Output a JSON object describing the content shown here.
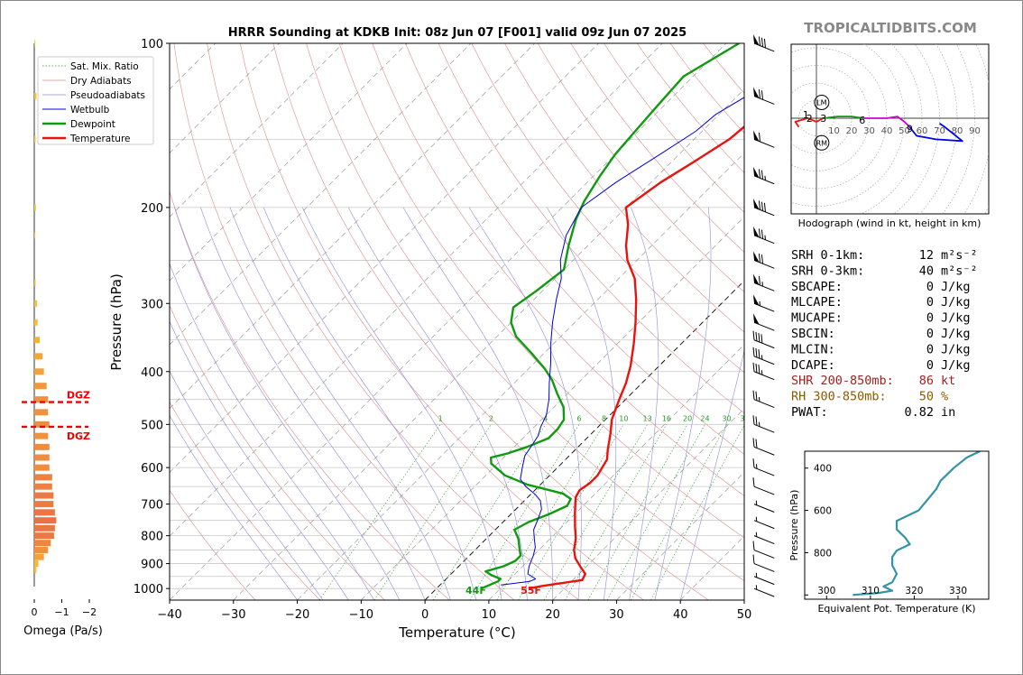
{
  "title": "HRRR Sounding at KDKB Init: 08z Jun 07 [F001] valid 09z Jun 07 2025",
  "brand": "TROPICALTIDBITS.COM",
  "chart_data": [
    {
      "type": "line",
      "name": "skew-t",
      "xlabel": "Temperature (°C)",
      "ylabel": "Pressure (hPa)",
      "xlim": [
        -40,
        50
      ],
      "ylim": [
        1050,
        100
      ],
      "y_scale": "log",
      "x_ticks": [
        "−40",
        "−30",
        "−20",
        "−10",
        "0",
        "10",
        "20",
        "30",
        "40",
        "50"
      ],
      "y_ticks": [
        "100",
        "200",
        "300",
        "400",
        "500",
        "600",
        "700",
        "800",
        "900",
        "1000"
      ],
      "legend": [
        "Sat. Mix. Ratio",
        "Dry Adiabats",
        "Pseudoadiabats",
        "Wetbulb",
        "Dewpoint",
        "Temperature"
      ],
      "legend_position": "upper-left",
      "mixing_ratio_labels": [
        "1",
        "2",
        "4",
        "6",
        "8",
        "10",
        "13",
        "16",
        "20",
        "24",
        "30",
        "36"
      ],
      "surface_labels": {
        "dewpoint": "44F",
        "temperature": "55F"
      },
      "series": [
        {
          "name": "Temperature",
          "color": "#e8130d",
          "points": [
            [
              14.5,
              1000
            ],
            [
              16,
              990
            ],
            [
              21.5,
              965
            ],
            [
              21,
              940
            ],
            [
              19,
              910
            ],
            [
              17,
              880
            ],
            [
              15.5,
              850
            ],
            [
              14,
              810
            ],
            [
              12,
              770
            ],
            [
              10,
              730
            ],
            [
              8.5,
              700
            ],
            [
              7.5,
              680
            ],
            [
              7,
              660
            ],
            [
              7.5,
              640
            ],
            [
              7.5,
              620
            ],
            [
              7,
              600
            ],
            [
              6.5,
              580
            ],
            [
              5,
              555
            ],
            [
              3,
              520
            ],
            [
              1,
              490
            ],
            [
              -1,
              450
            ],
            [
              -2.5,
              420
            ],
            [
              -4.5,
              390
            ],
            [
              -7.5,
              355
            ],
            [
              -10.5,
              325
            ],
            [
              -14,
              295
            ],
            [
              -17.5,
              270
            ],
            [
              -21.5,
              250
            ],
            [
              -24,
              235
            ],
            [
              -27,
              215
            ],
            [
              -30,
              200
            ],
            [
              -28.5,
              180
            ],
            [
              -26.5,
              165
            ],
            [
              -24.5,
              150
            ],
            [
              -24,
              140
            ],
            [
              -22.5,
              125
            ],
            [
              -17,
              110
            ],
            [
              -12,
              100
            ]
          ]
        },
        {
          "name": "Dewpoint",
          "color": "#0f9a0f",
          "points": [
            [
              7,
              1000
            ],
            [
              8.5,
              970
            ],
            [
              8.5,
              960
            ],
            [
              6.5,
              945
            ],
            [
              5,
              930
            ],
            [
              7,
              910
            ],
            [
              8,
              890
            ],
            [
              8,
              870
            ],
            [
              6.5,
              840
            ],
            [
              5,
              810
            ],
            [
              3,
              780
            ],
            [
              4,
              755
            ],
            [
              6,
              730
            ],
            [
              7.5,
              705
            ],
            [
              7,
              685
            ],
            [
              5,
              670
            ],
            [
              -2,
              645
            ],
            [
              -7,
              620
            ],
            [
              -11,
              590
            ],
            [
              -12,
              575
            ],
            [
              -10,
              565
            ],
            [
              -8,
              550
            ],
            [
              -6,
              530
            ],
            [
              -6,
              510
            ],
            [
              -6.5,
              490
            ],
            [
              -8.5,
              465
            ],
            [
              -11.5,
              440
            ],
            [
              -14.5,
              415
            ],
            [
              -17.5,
              395
            ],
            [
              -22,
              370
            ],
            [
              -27,
              345
            ],
            [
              -30,
              325
            ],
            [
              -32,
              305
            ],
            [
              -31,
              285
            ],
            [
              -30,
              260
            ],
            [
              -33,
              235
            ],
            [
              -36,
              210
            ],
            [
              -37.5,
              195
            ],
            [
              -39,
              175
            ],
            [
              -40,
              160
            ],
            [
              -40.5,
              145
            ],
            [
              -41,
              130
            ],
            [
              -41.5,
              115
            ],
            [
              -38,
              100
            ]
          ]
        },
        {
          "name": "Wetbulb",
          "color": "#0000dd",
          "points": [
            [
              9.5,
              985
            ],
            [
              13.5,
              970
            ],
            [
              14,
              960
            ],
            [
              12,
              940
            ],
            [
              11,
              910
            ],
            [
              10,
              870
            ],
            [
              9,
              840
            ],
            [
              7.5,
              810
            ],
            [
              6,
              780
            ],
            [
              5,
              745
            ],
            [
              4,
              715
            ],
            [
              2.5,
              690
            ],
            [
              0.5,
              670
            ],
            [
              -2,
              650
            ],
            [
              -4,
              630
            ],
            [
              -5.5,
              600
            ],
            [
              -7,
              570
            ],
            [
              -7.5,
              545
            ],
            [
              -8,
              525
            ],
            [
              -9,
              505
            ],
            [
              -10,
              480
            ],
            [
              -12,
              450
            ],
            [
              -14.5,
              420
            ],
            [
              -17.5,
              385
            ],
            [
              -20.5,
              355
            ],
            [
              -23.5,
              325
            ],
            [
              -26.5,
              295
            ],
            [
              -29,
              270
            ],
            [
              -32,
              250
            ],
            [
              -35,
              225
            ],
            [
              -37,
              200
            ],
            [
              -35.5,
              180
            ],
            [
              -33,
              160
            ],
            [
              -31,
              145
            ],
            [
              -30.5,
              135
            ],
            [
              -27.5,
              120
            ],
            [
              -22,
              110
            ],
            [
              -14,
              100
            ]
          ]
        }
      ]
    },
    {
      "type": "bar",
      "name": "omega",
      "xlabel": "Omega (Pa/s)",
      "x_ticks": [
        "0",
        "−1",
        "−2"
      ],
      "annotation": "DGZ",
      "dgz_bounds_hpa": [
        455,
        505
      ],
      "bars": [
        {
          "p": 100,
          "omega": -0.02
        },
        {
          "p": 125,
          "omega": -0.08
        },
        {
          "p": 150,
          "omega": -0.05
        },
        {
          "p": 200,
          "omega": -0.06
        },
        {
          "p": 225,
          "omega": -0.02
        },
        {
          "p": 275,
          "omega": -0.05
        },
        {
          "p": 300,
          "omega": -0.1
        },
        {
          "p": 325,
          "omega": -0.12
        },
        {
          "p": 350,
          "omega": -0.2
        },
        {
          "p": 375,
          "omega": -0.3
        },
        {
          "p": 400,
          "omega": -0.35
        },
        {
          "p": 425,
          "omega": -0.45
        },
        {
          "p": 450,
          "omega": -0.5
        },
        {
          "p": 475,
          "omega": -0.5
        },
        {
          "p": 500,
          "omega": -0.55
        },
        {
          "p": 525,
          "omega": -0.5
        },
        {
          "p": 550,
          "omega": -0.55
        },
        {
          "p": 575,
          "omega": -0.55
        },
        {
          "p": 600,
          "omega": -0.55
        },
        {
          "p": 625,
          "omega": -0.65
        },
        {
          "p": 650,
          "omega": -0.65
        },
        {
          "p": 675,
          "omega": -0.7
        },
        {
          "p": 700,
          "omega": -0.7
        },
        {
          "p": 725,
          "omega": -0.75
        },
        {
          "p": 750,
          "omega": -0.8
        },
        {
          "p": 775,
          "omega": -0.75
        },
        {
          "p": 800,
          "omega": -0.72
        },
        {
          "p": 825,
          "omega": -0.6
        },
        {
          "p": 850,
          "omega": -0.5
        },
        {
          "p": 875,
          "omega": -0.35
        },
        {
          "p": 900,
          "omega": -0.15
        },
        {
          "p": 925,
          "omega": -0.08
        }
      ]
    },
    {
      "type": "line",
      "name": "hodograph",
      "xlabel": "Hodograph (wind in kt, height in km)",
      "ring_labels": [
        "10",
        "20",
        "30",
        "40",
        "50",
        "60",
        "70",
        "80",
        "90"
      ],
      "markers": [
        "LM",
        "RM"
      ],
      "height_labels": [
        "1",
        "2",
        "3",
        "6",
        "9"
      ],
      "segments": [
        {
          "color": "#e8130d",
          "points": [
            [
              -10,
              -5
            ],
            [
              -12,
              -2
            ],
            [
              -5,
              0
            ],
            [
              0,
              -2
            ],
            [
              4,
              0
            ]
          ]
        },
        {
          "color": "#0f9a0f",
          "points": [
            [
              4,
              0
            ],
            [
              12,
              1
            ],
            [
              20,
              1
            ],
            [
              27,
              0
            ]
          ]
        },
        {
          "color": "#cc00cc",
          "points": [
            [
              27,
              0
            ],
            [
              40,
              0
            ],
            [
              46,
              1
            ],
            [
              50,
              -2
            ],
            [
              53,
              -5
            ]
          ]
        },
        {
          "color": "#0000ee",
          "points": [
            [
              53,
              -5
            ],
            [
              57,
              -10
            ],
            [
              68,
              -12
            ],
            [
              83,
              -13
            ],
            [
              78,
              -9
            ],
            [
              73,
              -5
            ],
            [
              70,
              -3
            ]
          ]
        }
      ]
    },
    {
      "type": "line",
      "name": "theta-e",
      "xlabel": "Equivalent Pot. Temperature (K)",
      "ylabel": "Pressure (hPa)",
      "x_ticks": [
        "300",
        "310",
        "320",
        "330"
      ],
      "y_ticks": [
        "400",
        "600",
        "800"
      ],
      "xlim": [
        295,
        337
      ],
      "ylim": [
        1020,
        320
      ],
      "color": "#3494a6",
      "points": [
        [
          306,
          1000
        ],
        [
          312,
          990
        ],
        [
          315,
          980
        ],
        [
          313,
          960
        ],
        [
          315,
          940
        ],
        [
          316,
          900
        ],
        [
          315,
          860
        ],
        [
          315,
          820
        ],
        [
          316,
          790
        ],
        [
          319,
          760
        ],
        [
          318,
          730
        ],
        [
          316,
          690
        ],
        [
          316,
          650
        ],
        [
          319,
          620
        ],
        [
          321,
          600
        ],
        [
          323,
          550
        ],
        [
          325,
          500
        ],
        [
          326,
          460
        ],
        [
          329,
          400
        ],
        [
          332,
          350
        ],
        [
          335,
          320
        ]
      ]
    }
  ],
  "stats": [
    {
      "label": "SRH 0-1km:",
      "value": "12",
      "unit": "m²s⁻²",
      "color": "#000000"
    },
    {
      "label": "SRH 0-3km:",
      "value": "40",
      "unit": "m²s⁻²",
      "color": "#000000"
    },
    {
      "label": "SBCAPE:",
      "value": "0",
      "unit": "J/kg",
      "color": "#000000"
    },
    {
      "label": "MLCAPE:",
      "value": "0",
      "unit": "J/kg",
      "color": "#000000"
    },
    {
      "label": "MUCAPE:",
      "value": "0",
      "unit": "J/kg",
      "color": "#000000"
    },
    {
      "label": "SBCIN:",
      "value": "0",
      "unit": "J/kg",
      "color": "#000000"
    },
    {
      "label": "MLCIN:",
      "value": "0",
      "unit": "J/kg",
      "color": "#000000"
    },
    {
      "label": "DCAPE:",
      "value": "0",
      "unit": "J/kg",
      "color": "#000000"
    },
    {
      "label": "SHR 200-850mb:",
      "value": "86",
      "unit": "kt",
      "color": "#a32020"
    },
    {
      "label": "RH 300-850mb:",
      "value": "50",
      "unit": "%",
      "color": "#8a5a00"
    },
    {
      "label": "PWAT:",
      "value": "0.82",
      "unit": "in",
      "color": "#000000"
    }
  ],
  "wind_barbs": [
    {
      "p": 100,
      "speed": 80
    },
    {
      "p": 125,
      "speed": 70
    },
    {
      "p": 150,
      "speed": 60
    },
    {
      "p": 175,
      "speed": 75
    },
    {
      "p": 200,
      "speed": 80
    },
    {
      "p": 225,
      "speed": 75
    },
    {
      "p": 250,
      "speed": 70
    },
    {
      "p": 275,
      "speed": 65
    },
    {
      "p": 300,
      "speed": 55
    },
    {
      "p": 325,
      "speed": 50
    },
    {
      "p": 350,
      "speed": 40
    },
    {
      "p": 375,
      "speed": 35
    },
    {
      "p": 400,
      "speed": 35
    },
    {
      "p": 450,
      "speed": 25
    },
    {
      "p": 500,
      "speed": 25
    },
    {
      "p": 550,
      "speed": 20
    },
    {
      "p": 600,
      "speed": 15
    },
    {
      "p": 650,
      "speed": 10
    },
    {
      "p": 700,
      "speed": 5
    },
    {
      "p": 750,
      "speed": 5
    },
    {
      "p": 800,
      "speed": 5
    },
    {
      "p": 850,
      "speed": 10
    },
    {
      "p": 900,
      "speed": 10
    },
    {
      "p": 950,
      "speed": 5
    },
    {
      "p": 1000,
      "speed": 5
    }
  ]
}
